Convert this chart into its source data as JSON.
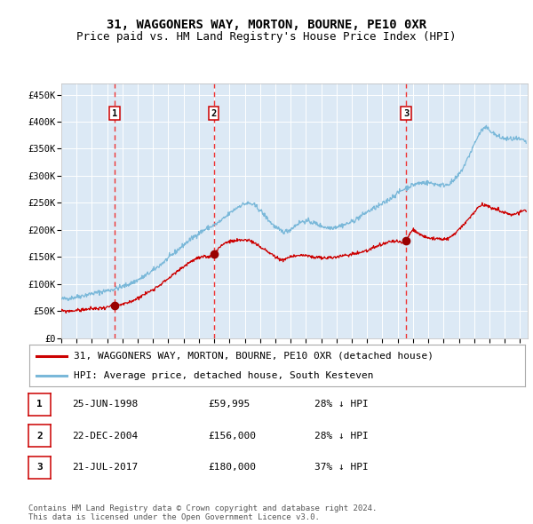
{
  "title": "31, WAGGONERS WAY, MORTON, BOURNE, PE10 0XR",
  "subtitle": "Price paid vs. HM Land Registry's House Price Index (HPI)",
  "bg_color": "#dce9f5",
  "grid_color": "#ffffff",
  "hpi_color": "#7ab8d9",
  "price_color": "#cc0000",
  "marker_color": "#990000",
  "vline_color": "#ee3333",
  "ylim": [
    0,
    470000
  ],
  "yticks": [
    0,
    50000,
    100000,
    150000,
    200000,
    250000,
    300000,
    350000,
    400000,
    450000
  ],
  "ytick_labels": [
    "£0",
    "£50K",
    "£100K",
    "£150K",
    "£200K",
    "£250K",
    "£300K",
    "£350K",
    "£400K",
    "£450K"
  ],
  "xlim_start": 1995.0,
  "xlim_end": 2025.5,
  "xtick_years": [
    1995,
    1996,
    1997,
    1998,
    1999,
    2000,
    2001,
    2002,
    2003,
    2004,
    2005,
    2006,
    2007,
    2008,
    2009,
    2010,
    2011,
    2012,
    2013,
    2014,
    2015,
    2016,
    2017,
    2018,
    2019,
    2020,
    2021,
    2022,
    2023,
    2024,
    2025
  ],
  "sale_dates": [
    1998.479,
    2004.978,
    2017.548
  ],
  "sale_prices": [
    59995,
    156000,
    180000
  ],
  "sale_labels": [
    "1",
    "2",
    "3"
  ],
  "legend_price_label": "31, WAGGONERS WAY, MORTON, BOURNE, PE10 0XR (detached house)",
  "legend_hpi_label": "HPI: Average price, detached house, South Kesteven",
  "table_rows": [
    {
      "num": "1",
      "date": "25-JUN-1998",
      "price": "£59,995",
      "hpi": "28% ↓ HPI"
    },
    {
      "num": "2",
      "date": "22-DEC-2004",
      "price": "£156,000",
      "hpi": "28% ↓ HPI"
    },
    {
      "num": "3",
      "date": "21-JUL-2017",
      "price": "£180,000",
      "hpi": "37% ↓ HPI"
    }
  ],
  "footer": "Contains HM Land Registry data © Crown copyright and database right 2024.\nThis data is licensed under the Open Government Licence v3.0.",
  "title_fontsize": 10,
  "subtitle_fontsize": 9,
  "tick_fontsize": 7.5,
  "legend_fontsize": 8,
  "table_fontsize": 8,
  "footer_fontsize": 6.5
}
